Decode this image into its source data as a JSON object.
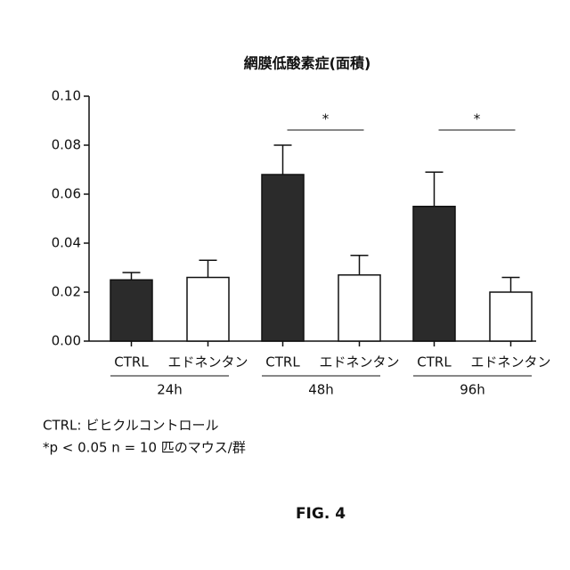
{
  "chart_data": {
    "type": "bar",
    "title": "網膜低酸素症(面積)",
    "categories": [
      "24h",
      "48h",
      "96h"
    ],
    "series": [
      {
        "name": "CTRL",
        "color": "#2b2b2b",
        "values": [
          0.025,
          0.068,
          0.055
        ],
        "errors": [
          0.003,
          0.012,
          0.014
        ]
      },
      {
        "name": "エドネンタン",
        "color": "#ffffff",
        "values": [
          0.026,
          0.027,
          0.02
        ],
        "errors": [
          0.007,
          0.008,
          0.006
        ]
      }
    ],
    "ylim": [
      0,
      0.1
    ],
    "yticks": [
      {
        "value": 0,
        "label": "0.00"
      },
      {
        "value": 0.02,
        "label": "0.02"
      },
      {
        "value": 0.04,
        "label": "0.04"
      },
      {
        "value": 0.06,
        "label": "0.06"
      },
      {
        "value": 0.08,
        "label": "0.08"
      },
      {
        "value": 0.1,
        "label": "0.10"
      }
    ],
    "annotations": [
      {
        "label": "*",
        "category": "48h"
      },
      {
        "label": "*",
        "category": "96h"
      }
    ],
    "footnotes": [
      "CTRL: ビヒクルコントロール",
      "*p < 0.05 n = 10 匹のマウス/群"
    ],
    "figure_label": "FIG. 4"
  }
}
